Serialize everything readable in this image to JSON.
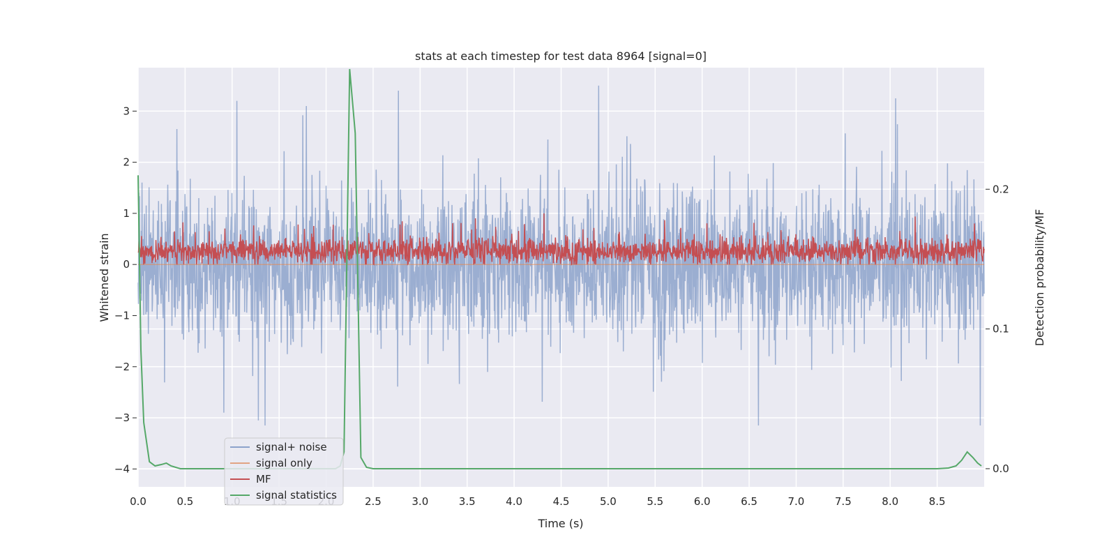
{
  "chart_data": {
    "type": "line",
    "title": "stats at each timestep for test data 8964 [signal=0]",
    "xlabel": "Time (s)",
    "ylabel": "Whitened strain",
    "y2label": "Detection probability/MF",
    "xlim": [
      0,
      9.0
    ],
    "ylim": [
      -4.35,
      3.85
    ],
    "y2lim": [
      -0.013,
      0.287
    ],
    "x_ticks": [
      "0.0",
      "0.5",
      "1.0",
      "1.5",
      "2.0",
      "2.5",
      "3.0",
      "3.5",
      "4.0",
      "4.5",
      "5.0",
      "5.5",
      "6.0",
      "6.5",
      "7.0",
      "7.5",
      "8.0",
      "8.5"
    ],
    "y_ticks": [
      "3",
      "2",
      "1",
      "0",
      "−1",
      "−2",
      "−3",
      "−4"
    ],
    "y2_ticks": [
      "0.2",
      "0.1",
      "0.0"
    ],
    "grid": true,
    "legend_position": "lower-left",
    "colors": {
      "background": "#eaeaf2",
      "grid": "#ffffff",
      "noise": "#4c72b0",
      "signal_only": "#dd8452",
      "mf": "#c44e52",
      "stats": "#55a868"
    },
    "series": [
      {
        "name": "signal+ noise",
        "axis": "left",
        "description_note": "dense noise, approx mean 0, std 0.75",
        "amplitude_range": [
          -3.3,
          3.5
        ],
        "spikes": [
          [
            1.05,
            3.2
          ],
          [
            1.79,
            3.1
          ],
          [
            2.77,
            3.4
          ],
          [
            4.9,
            3.5
          ],
          [
            8.06,
            3.25
          ],
          [
            1.28,
            -3.05
          ],
          [
            1.35,
            -3.15
          ],
          [
            6.6,
            -3.15
          ],
          [
            8.96,
            -3.15
          ]
        ]
      },
      {
        "name": "signal only",
        "axis": "left",
        "x": [
          0.0,
          9.0
        ],
        "y": [
          0.0,
          0.0
        ]
      },
      {
        "name": "MF",
        "axis": "left",
        "amplitude_range": [
          0.0,
          1.0
        ],
        "mean": 0.25
      },
      {
        "name": "signal statistics",
        "axis": "right",
        "x": [
          0.0,
          0.03,
          0.06,
          0.12,
          0.18,
          0.25,
          0.3,
          0.35,
          0.45,
          0.6,
          1.0,
          1.5,
          2.0,
          2.1,
          2.15,
          2.19,
          2.25,
          2.31,
          2.37,
          2.43,
          2.5,
          3.0,
          4.0,
          5.0,
          6.0,
          6.8,
          7.5,
          8.0,
          8.5,
          8.62,
          8.7,
          8.76,
          8.82,
          8.88,
          8.93,
          8.97
        ],
        "y": [
          0.21,
          0.085,
          0.033,
          0.005,
          0.002,
          0.003,
          0.004,
          0.002,
          0.0,
          0.0,
          0.0,
          0.0,
          0.0,
          0.0,
          0.002,
          0.012,
          0.286,
          0.24,
          0.008,
          0.001,
          0.0,
          0.0,
          0.0,
          0.0,
          0.0,
          0.0,
          0.0,
          0.0,
          0.0,
          0.0005,
          0.002,
          0.006,
          0.012,
          0.008,
          0.004,
          0.002
        ]
      }
    ]
  }
}
